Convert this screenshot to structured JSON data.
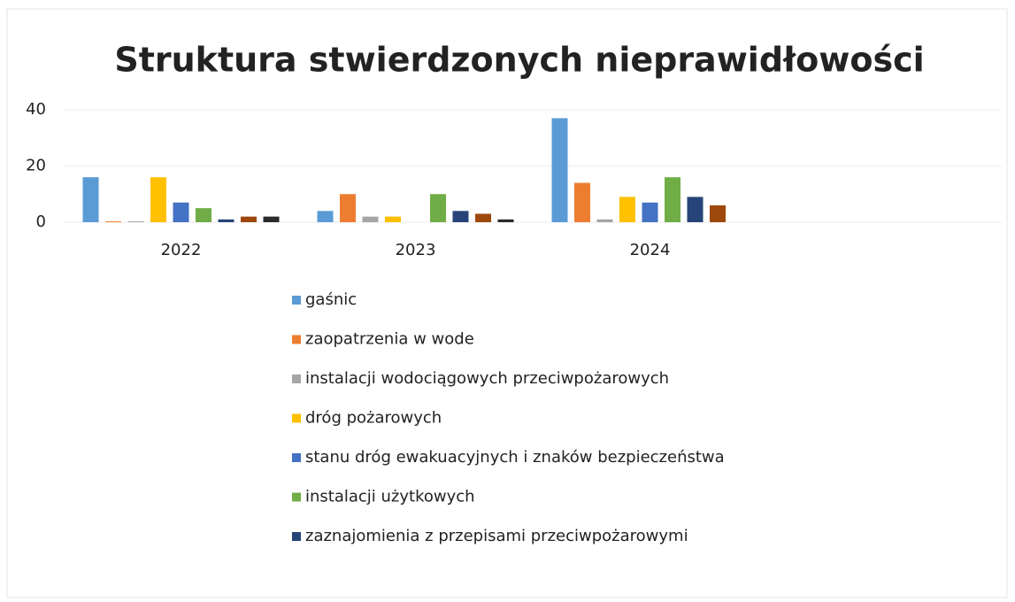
{
  "chart_data": {
    "type": "bar",
    "title": "Struktura stwierdzonych nieprawidłowości",
    "categories": [
      "2022",
      "2023",
      "2024",
      null
    ],
    "series": [
      {
        "name": "gaśnic",
        "color": "#5b9bd5",
        "values": [
          16,
          4,
          37,
          null
        ]
      },
      {
        "name": "zaopatrzenia w wode",
        "color": "#ed7d31",
        "values": [
          0.3,
          10,
          14,
          null
        ]
      },
      {
        "name": "instalacji wodociągowych przeciwpożarowych",
        "color": "#a5a5a5",
        "values": [
          0.3,
          2,
          1,
          null
        ]
      },
      {
        "name": "dróg pożarowych",
        "color": "#ffc000",
        "values": [
          16,
          2,
          9,
          null
        ]
      },
      {
        "name": "stanu dróg ewakuacyjnych i znaków bezpieczeństwa",
        "color": "#4472c4",
        "values": [
          7,
          0,
          7,
          null
        ]
      },
      {
        "name": "instalacji użytkowych",
        "color": "#70ad47",
        "values": [
          5,
          10,
          16,
          null
        ]
      },
      {
        "name": "zaznajomienia z przepisami przeciwpożarowymi",
        "color": "#264478",
        "values": [
          1,
          4,
          9,
          null
        ]
      },
      {
        "color": "#9e480e",
        "values": [
          2,
          3,
          6,
          null
        ]
      },
      {
        "color": "#2b2b2b",
        "values": [
          2,
          1,
          0,
          null
        ]
      }
    ],
    "ylim": [
      0,
      40
    ],
    "yticks": [
      0,
      20,
      40
    ],
    "grid": true
  }
}
